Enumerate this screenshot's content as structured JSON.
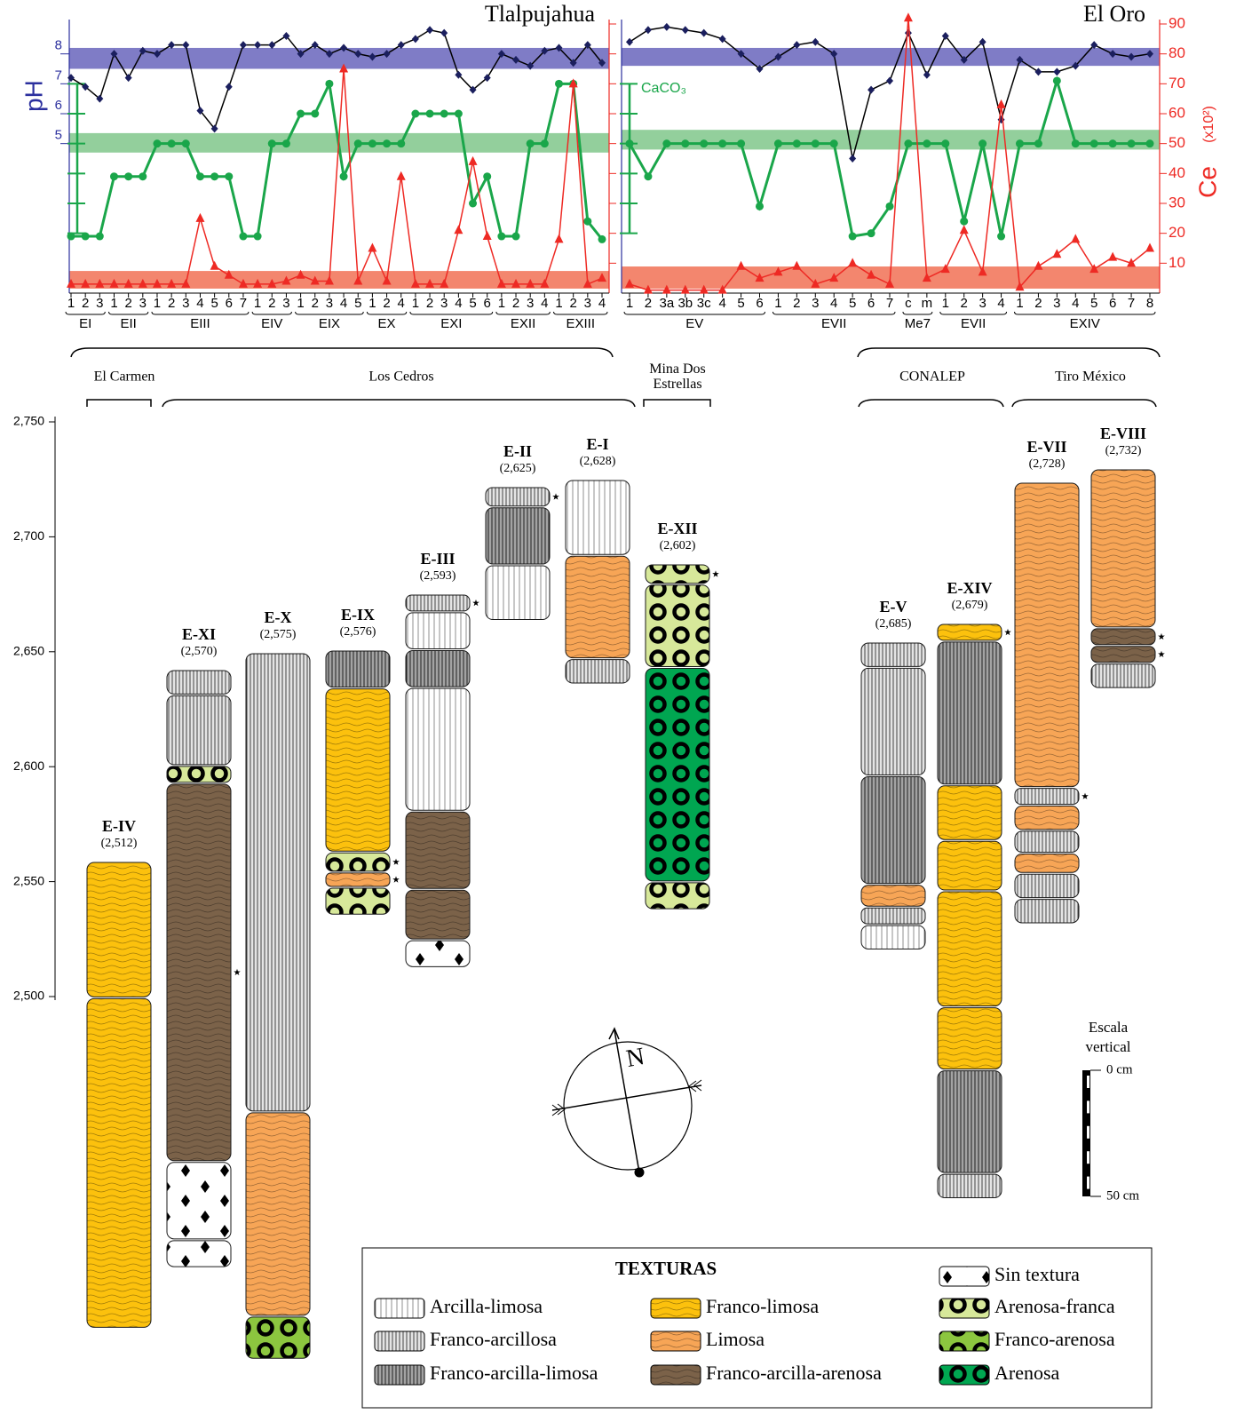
{
  "chart_data": [
    {
      "type": "line",
      "title": "Tlalpujahua",
      "ylabel": "pH",
      "categories": [
        "1",
        "2",
        "3",
        "1",
        "2",
        "3",
        "1",
        "2",
        "3",
        "4",
        "5",
        "6",
        "7",
        "1",
        "2",
        "3",
        "1",
        "2",
        "3",
        "4",
        "5",
        "1",
        "2",
        "4",
        "1",
        "2",
        "3",
        "4",
        "5",
        "6",
        "1",
        "2",
        "3",
        "4",
        "1",
        "2",
        "3",
        "4"
      ],
      "groups": [
        {
          "label": "EI",
          "count": 3
        },
        {
          "label": "EII",
          "count": 3
        },
        {
          "label": "EIII",
          "count": 7
        },
        {
          "label": "EIV",
          "count": 3
        },
        {
          "label": "EIX",
          "count": 5
        },
        {
          "label": "EX",
          "count": 3
        },
        {
          "label": "EXI",
          "count": 6
        },
        {
          "label": "EXII",
          "count": 4
        },
        {
          "label": "EXIII",
          "count": 4
        }
      ],
      "ylim": [
        0,
        9
      ],
      "yticks": [
        5,
        6,
        7,
        8
      ],
      "y2lim": [
        0,
        90
      ],
      "y2ticks": [
        10,
        20,
        30,
        40,
        50,
        60,
        70,
        80,
        90
      ],
      "y3ticks": [
        20,
        30,
        40,
        50,
        60,
        70
      ],
      "y3color": "#1aa64a",
      "bands": [
        {
          "axis": "y",
          "range": [
            7.5,
            8.2
          ],
          "color": "#7f7cc6"
        },
        {
          "axis": "y2",
          "range": [
            47,
            53.5
          ],
          "color": "#93cf9c"
        },
        {
          "axis": "y2",
          "range": [
            1.5,
            7.4
          ],
          "color": "#f3866e"
        }
      ],
      "series": [
        {
          "color": "#1b1f5e",
          "line_color": "#000000",
          "marker": "diamond",
          "values": [
            7.2,
            6.9,
            6.5,
            8.0,
            7.2,
            8.1,
            8.0,
            8.3,
            8.3,
            6.1,
            5.5,
            6.9,
            8.3,
            8.3,
            8.3,
            8.6,
            8.0,
            8.3,
            8.0,
            8.2,
            8.0,
            7.9,
            8.0,
            8.3,
            8.5,
            8.8,
            8.7,
            7.3,
            6.8,
            7.2,
            8.0,
            7.8,
            7.6,
            8.1,
            8.2,
            7.7,
            8.3,
            7.7
          ]
        },
        {
          "color": "#1aa64a",
          "line_color": "#1aa64a",
          "axis": "y2",
          "marker": "circle",
          "values": [
            19,
            19,
            19,
            39,
            39,
            39,
            50,
            50,
            50,
            39,
            39,
            39,
            19,
            19,
            50,
            50,
            60,
            60,
            70,
            39,
            50,
            50,
            50,
            50,
            60,
            60,
            60,
            60,
            30,
            39,
            19,
            19,
            50,
            50,
            70,
            70,
            24,
            18
          ]
        },
        {
          "color": "#ee2a24",
          "line_color": "#ee2a24",
          "axis": "y2",
          "marker": "triangle",
          "values": [
            3,
            3,
            3,
            3,
            3,
            3,
            3,
            3,
            3,
            25,
            9,
            6,
            3,
            3,
            3,
            4,
            6,
            4,
            4,
            75,
            4,
            15,
            4,
            39,
            3,
            3,
            3,
            21,
            44,
            19,
            3,
            3,
            3,
            3,
            18,
            70,
            3,
            5
          ]
        }
      ]
    },
    {
      "type": "line",
      "title": "El Oro",
      "y2label": "Ce",
      "y2unit": "(x10²)",
      "categories": [
        "1",
        "2",
        "3a",
        "3b",
        "3c",
        "4",
        "5",
        "6",
        "1",
        "2",
        "3",
        "4",
        "5",
        "6",
        "7",
        "c",
        "m",
        "1",
        "2",
        "3",
        "4",
        "1",
        "2",
        "3",
        "4",
        "5",
        "6",
        "7",
        "8"
      ],
      "groups": [
        {
          "label": "EV",
          "count": 8
        },
        {
          "label": "EVII",
          "count": 7
        },
        {
          "label": "Me7",
          "count": 2
        },
        {
          "label": "EVII",
          "count": 4
        },
        {
          "label": "EXIV",
          "count": 8
        }
      ],
      "ylim": [
        0,
        9
      ],
      "y2lim": [
        0,
        90
      ],
      "y2ticks": [
        10,
        20,
        30,
        40,
        50,
        60,
        70,
        80,
        90
      ],
      "y3ticks": [
        20,
        30,
        40,
        50,
        60,
        70
      ],
      "y3color": "#1aa64a",
      "bands": [
        {
          "axis": "y",
          "range": [
            7.6,
            8.2
          ],
          "color": "#7f7cc6"
        },
        {
          "axis": "y2",
          "range": [
            48,
            54.6
          ],
          "color": "#93cf9c"
        },
        {
          "axis": "y2",
          "range": [
            1.5,
            8.9
          ],
          "color": "#f3866e"
        }
      ],
      "series": [
        {
          "color": "#1b1f5e",
          "line_color": "#000000",
          "marker": "diamond",
          "values": [
            8.4,
            8.8,
            8.9,
            8.8,
            8.7,
            8.5,
            8.0,
            7.5,
            7.9,
            8.3,
            8.4,
            8.0,
            4.5,
            6.8,
            7.1,
            8.7,
            7.3,
            8.6,
            7.8,
            8.4,
            5.8,
            7.8,
            7.4,
            7.4,
            7.6,
            8.3,
            8.0,
            7.9,
            8.0
          ]
        },
        {
          "name": "CaCO₃",
          "color": "#1aa64a",
          "line_color": "#1aa64a",
          "axis": "y2",
          "marker": "circle",
          "values": [
            50,
            39,
            50,
            50,
            50,
            50,
            50,
            29,
            50,
            50,
            50,
            50,
            19,
            20,
            29,
            50,
            50,
            50,
            24,
            50,
            19,
            50,
            50,
            71,
            50,
            50,
            50,
            50,
            50
          ]
        },
        {
          "color": "#ee2a24",
          "line_color": "#ee2a24",
          "axis": "y2",
          "marker": "triangle",
          "values": [
            3,
            1,
            1,
            1,
            1,
            1,
            9,
            5,
            7,
            9,
            3,
            5,
            10,
            6,
            3,
            92,
            5,
            8,
            21,
            7,
            63,
            2,
            9,
            13,
            18,
            8,
            12,
            10,
            15
          ]
        }
      ]
    }
  ],
  "sites": [
    {
      "lines": [
        "El Carmen"
      ]
    },
    {
      "lines": [
        "Los Cedros"
      ]
    },
    {
      "lines": [
        "Mina Dos",
        "Estrellas"
      ]
    },
    {
      "lines": [
        "CONALEP"
      ]
    },
    {
      "lines": [
        "Tiro México"
      ]
    }
  ],
  "profiles": {
    "elevation_axis": {
      "ylim": [
        2500,
        2750
      ],
      "yticks": [
        {
          "value": 2500,
          "label": "2,500"
        },
        {
          "value": 2550,
          "label": "2,550"
        },
        {
          "value": 2600,
          "label": "2,600"
        },
        {
          "value": 2650,
          "label": "2,650"
        },
        {
          "value": 2700,
          "label": "2,700"
        },
        {
          "value": 2750,
          "label": "2,750"
        }
      ]
    },
    "columns": [
      {
        "name": "E-IV",
        "elevation": "(2,512)",
        "layers": [
          {
            "texture": 3,
            "cm": 54
          },
          {
            "texture": 3,
            "cm": 131
          }
        ]
      },
      {
        "name": "E-XI",
        "elevation": "(2,570)",
        "layers": [
          {
            "texture": 1,
            "cm": 10
          },
          {
            "texture": 1,
            "cm": 28
          },
          {
            "texture": 7,
            "cm": 7
          },
          {
            "texture": 5,
            "cm": 150,
            "star": true
          },
          {
            "texture": 6,
            "cm": 31
          },
          {
            "texture": 6,
            "cm": 11
          }
        ]
      },
      {
        "name": "E-X",
        "elevation": "(2,575)",
        "layers": [
          {
            "texture": 1,
            "cm": 182
          },
          {
            "texture": 4,
            "cm": 81
          },
          {
            "texture": 8,
            "cm": 17
          }
        ]
      },
      {
        "name": "E-IX",
        "elevation": "(2,576)",
        "layers": [
          {
            "texture": 2,
            "cm": 15
          },
          {
            "texture": 3,
            "cm": 65
          },
          {
            "texture": 7,
            "cm": 8,
            "star": true
          },
          {
            "texture": 4,
            "cm": 6,
            "star": true
          },
          {
            "texture": 7,
            "cm": 11
          }
        ]
      },
      {
        "name": "E-III",
        "elevation": "(2,593)",
        "layers": [
          {
            "texture": 1,
            "cm": 7,
            "star": true
          },
          {
            "texture": 0,
            "cm": 15
          },
          {
            "texture": 2,
            "cm": 15
          },
          {
            "texture": 0,
            "cm": 49
          },
          {
            "texture": 5,
            "cm": 31
          },
          {
            "texture": 5,
            "cm": 20
          },
          {
            "texture": 6,
            "cm": 11
          }
        ]
      },
      {
        "name": "E-II",
        "elevation": "(2,625)",
        "layers": [
          {
            "texture": 1,
            "cm": 8,
            "star": true
          },
          {
            "texture": 2,
            "cm": 23
          },
          {
            "texture": 0,
            "cm": 22
          }
        ]
      },
      {
        "name": "E-I",
        "elevation": "(2,628)",
        "layers": [
          {
            "texture": 0,
            "cm": 30
          },
          {
            "texture": 4,
            "cm": 41
          },
          {
            "texture": 1,
            "cm": 10
          }
        ]
      },
      {
        "name": "E-XII",
        "elevation": "(2,602)",
        "layers": [
          {
            "texture": 7,
            "cm": 8,
            "star": true
          },
          {
            "texture": 7,
            "cm": 33
          },
          {
            "texture": 9,
            "cm": 85
          },
          {
            "texture": 7,
            "cm": 11
          }
        ]
      },
      {
        "name": "E-V",
        "elevation": "(2,685)",
        "layers": [
          {
            "texture": 1,
            "cm": 10
          },
          {
            "texture": 1,
            "cm": 43
          },
          {
            "texture": 2,
            "cm": 43
          },
          {
            "texture": 4,
            "cm": 9
          },
          {
            "texture": 1,
            "cm": 7
          },
          {
            "texture": 0,
            "cm": 10
          }
        ]
      },
      {
        "name": "E-XIV",
        "elevation": "(2,679)",
        "layers": [
          {
            "texture": 3,
            "cm": 7,
            "star": true
          },
          {
            "texture": 2,
            "cm": 57
          },
          {
            "texture": 3,
            "cm": 22
          },
          {
            "texture": 3,
            "cm": 20
          },
          {
            "texture": 3,
            "cm": 46
          },
          {
            "texture": 3,
            "cm": 25
          },
          {
            "texture": 2,
            "cm": 41
          },
          {
            "texture": 1,
            "cm": 10
          }
        ]
      },
      {
        "name": "E-VII",
        "elevation": "(2,728)",
        "layers": [
          {
            "texture": 4,
            "cm": 121
          },
          {
            "texture": 1,
            "cm": 7,
            "star": true
          },
          {
            "texture": 4,
            "cm": 10
          },
          {
            "texture": 1,
            "cm": 9
          },
          {
            "texture": 4,
            "cm": 8
          },
          {
            "texture": 1,
            "cm": 10
          },
          {
            "texture": 1,
            "cm": 10
          }
        ]
      },
      {
        "name": "E-VIII",
        "elevation": "(2,732)",
        "layers": [
          {
            "texture": 4,
            "cm": 63
          },
          {
            "texture": 5,
            "cm": 7,
            "star": true
          },
          {
            "texture": 5,
            "cm": 7,
            "star": true
          },
          {
            "texture": 1,
            "cm": 10
          }
        ]
      }
    ]
  },
  "scale": {
    "title": [
      "Escala",
      "vertical"
    ],
    "ticks": [
      {
        "value": 0,
        "label": "0 cm"
      },
      {
        "value": 50,
        "label": "50 cm"
      }
    ]
  },
  "compass": {
    "label": "N"
  },
  "legend": {
    "title": "TEXTURAS",
    "items": [
      {
        "name": "Arcilla-limosa",
        "color": "#ffffff"
      },
      {
        "name": "Franco-arcillosa",
        "color": "#e4e4e4"
      },
      {
        "name": "Franco-arcilla-limosa",
        "color": "#a3a3a3"
      },
      {
        "name": "Franco-limosa",
        "color": "#fcc10d"
      },
      {
        "name": "Limosa",
        "color": "#f7a556"
      },
      {
        "name": "Franco-arcilla-arenosa",
        "color": "#7b6249"
      },
      {
        "name": "Sin textura",
        "color": "#ffffff"
      },
      {
        "name": "Arenosa-franca",
        "color": "#d7e89a"
      },
      {
        "name": "Franco-arenosa",
        "color": "#8cc63f"
      },
      {
        "name": "Arenosa",
        "color": "#00a651"
      }
    ]
  }
}
